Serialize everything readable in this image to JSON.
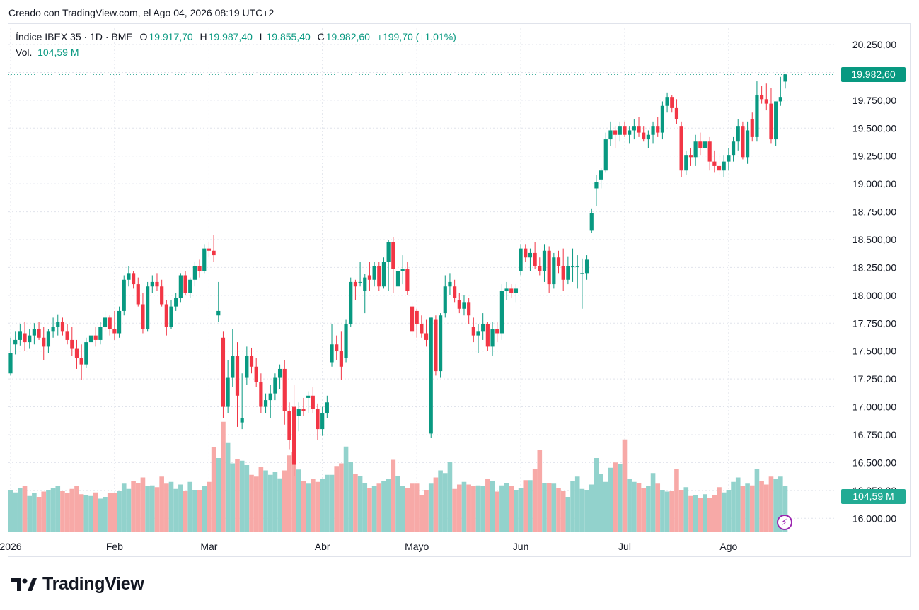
{
  "created_text": "Creado con TradingView.com, el Ago 04, 2026 08:19 UTC+2",
  "legend": {
    "symbol": "Índice IBEX 35 · 1D · BME",
    "o_label": "O",
    "o_value": "19.917,70",
    "h_label": "H",
    "h_value": "19.987,40",
    "l_label": "L",
    "l_value": "19.855,40",
    "c_label": "C",
    "c_value": "19.982,60",
    "change": "+199,70 (+1,01%)",
    "vol_label": "Vol.",
    "vol_value": "104,59 M"
  },
  "last_price_label": "19.982,60",
  "last_volume_label": "104,59 M",
  "brand": "TradingView",
  "colors": {
    "up": "#089981",
    "down": "#f23645",
    "up_volume": "#92d2cc",
    "down_volume": "#f7a9a7",
    "grid": "#e0e3eb"
  },
  "chart_data": {
    "type": "candlestick",
    "y_ticks": [
      "20.250,00",
      "20.000,00",
      "19.750,00",
      "19.500,00",
      "19.250,00",
      "19.000,00",
      "18.750,00",
      "18.500,00",
      "18.250,00",
      "18.000,00",
      "17.750,00",
      "17.500,00",
      "17.250,00",
      "17.000,00",
      "16.750,00",
      "16.500,00",
      "16.250,00",
      "16.000,00"
    ],
    "y_tick_values": [
      20250,
      20000,
      19750,
      19500,
      19250,
      19000,
      18750,
      18500,
      18250,
      18000,
      17750,
      17500,
      17250,
      17000,
      16750,
      16500,
      16250,
      16000
    ],
    "x_labels": [
      "2026",
      "Feb",
      "Mar",
      "Abr",
      "Mayo",
      "Jun",
      "Jul",
      "Ago"
    ],
    "x_label_index": [
      0,
      22,
      42,
      66,
      86,
      108,
      130,
      152
    ],
    "last_price": 19982.6,
    "ohlc": [
      [
        17300,
        17620,
        17280,
        17480,
        48
      ],
      [
        17560,
        17680,
        17470,
        17600,
        45
      ],
      [
        17600,
        17740,
        17550,
        17680,
        50
      ],
      [
        17660,
        17760,
        17500,
        17580,
        52
      ],
      [
        17580,
        17700,
        17520,
        17640,
        41
      ],
      [
        17640,
        17750,
        17560,
        17700,
        44
      ],
      [
        17700,
        17760,
        17600,
        17620,
        40
      ],
      [
        17620,
        17720,
        17420,
        17540,
        46
      ],
      [
        17540,
        17700,
        17480,
        17680,
        48
      ],
      [
        17680,
        17800,
        17620,
        17720,
        50
      ],
      [
        17720,
        17830,
        17640,
        17760,
        52
      ],
      [
        17760,
        17800,
        17640,
        17680,
        47
      ],
      [
        17680,
        17740,
        17560,
        17600,
        44
      ],
      [
        17600,
        17720,
        17460,
        17520,
        49
      ],
      [
        17520,
        17600,
        17340,
        17440,
        52
      ],
      [
        17440,
        17560,
        17240,
        17380,
        43
      ],
      [
        17380,
        17620,
        17350,
        17580,
        42
      ],
      [
        17580,
        17680,
        17520,
        17640,
        41
      ],
      [
        17640,
        17720,
        17540,
        17600,
        45
      ],
      [
        17600,
        17760,
        17560,
        17720,
        38
      ],
      [
        17720,
        17860,
        17680,
        17800,
        40
      ],
      [
        17800,
        17820,
        17640,
        17700,
        44
      ],
      [
        17700,
        17860,
        17600,
        17660,
        44
      ],
      [
        17660,
        17900,
        17620,
        17860,
        47
      ],
      [
        17860,
        18180,
        17820,
        18140,
        55
      ],
      [
        18140,
        18260,
        18080,
        18200,
        49
      ],
      [
        18200,
        18220,
        18060,
        18100,
        58
      ],
      [
        18100,
        18160,
        17900,
        17920,
        56
      ],
      [
        17920,
        18020,
        17660,
        17700,
        62
      ],
      [
        17700,
        18120,
        17680,
        18080,
        52
      ],
      [
        18080,
        18180,
        18020,
        18120,
        53
      ],
      [
        18120,
        18200,
        18040,
        18080,
        51
      ],
      [
        18080,
        18140,
        17900,
        17920,
        63
      ],
      [
        17920,
        17960,
        17640,
        17720,
        55
      ],
      [
        17720,
        17960,
        17700,
        17900,
        57
      ],
      [
        17900,
        18020,
        17860,
        17980,
        49
      ],
      [
        17980,
        18200,
        17940,
        18180,
        54
      ],
      [
        18180,
        18220,
        18000,
        18020,
        47
      ],
      [
        18020,
        18160,
        17980,
        18140,
        57
      ],
      [
        18140,
        18300,
        18080,
        18260,
        48
      ],
      [
        18260,
        18320,
        18160,
        18220,
        48
      ],
      [
        18220,
        18460,
        18200,
        18420,
        52
      ],
      [
        18420,
        18480,
        18340,
        18400,
        57
      ],
      [
        18400,
        18540,
        18300,
        18360,
        96
      ],
      [
        17820,
        18120,
        17760,
        17860,
        84
      ],
      [
        17620,
        17680,
        16900,
        17000,
        125
      ],
      [
        17000,
        17420,
        16940,
        17260,
        101
      ],
      [
        17260,
        17700,
        17180,
        17460,
        78
      ],
      [
        17460,
        17580,
        16820,
        17100,
        83
      ],
      [
        16860,
        17300,
        16800,
        16900,
        81
      ],
      [
        17260,
        17540,
        17200,
        17460,
        76
      ],
      [
        17460,
        17530,
        17300,
        17360,
        65
      ],
      [
        17360,
        17440,
        17180,
        17220,
        63
      ],
      [
        17220,
        17300,
        16940,
        17000,
        74
      ],
      [
        17000,
        17120,
        16940,
        17060,
        70
      ],
      [
        17060,
        17200,
        16900,
        17120,
        65
      ],
      [
        17120,
        17300,
        17060,
        17260,
        68
      ],
      [
        17260,
        17380,
        17160,
        17340,
        61
      ],
      [
        17340,
        17420,
        16840,
        16960,
        70
      ],
      [
        16960,
        17040,
        16620,
        16700,
        87
      ],
      [
        17000,
        17200,
        16380,
        16480,
        91
      ],
      [
        16920,
        17040,
        16780,
        16980,
        71
      ],
      [
        16980,
        17080,
        16920,
        16960,
        58
      ],
      [
        17080,
        17140,
        16940,
        17100,
        55
      ],
      [
        17100,
        17180,
        16940,
        16980,
        60
      ],
      [
        16980,
        17030,
        16700,
        16800,
        57
      ],
      [
        16800,
        17000,
        16740,
        16940,
        60
      ],
      [
        16940,
        17100,
        16900,
        17040,
        65
      ],
      [
        17400,
        17740,
        17360,
        17560,
        65
      ],
      [
        17560,
        17640,
        17420,
        17500,
        75
      ],
      [
        17500,
        17680,
        17240,
        17360,
        78
      ],
      [
        17440,
        17780,
        17400,
        17740,
        97
      ],
      [
        17740,
        18160,
        17720,
        18120,
        80
      ],
      [
        18120,
        18140,
        17960,
        18080,
        66
      ],
      [
        18120,
        18300,
        18080,
        18120,
        64
      ],
      [
        18040,
        18190,
        17840,
        18160,
        56
      ],
      [
        18180,
        18300,
        18040,
        18140,
        50
      ],
      [
        18140,
        18300,
        18080,
        18260,
        52
      ],
      [
        18260,
        18300,
        18040,
        18080,
        55
      ],
      [
        18080,
        18340,
        18060,
        18300,
        58
      ],
      [
        18300,
        18500,
        18040,
        18480,
        60
      ],
      [
        18480,
        18520,
        18020,
        18240,
        82
      ],
      [
        18080,
        18360,
        17920,
        18220,
        64
      ],
      [
        18220,
        18360,
        18100,
        18240,
        52
      ],
      [
        18240,
        18300,
        18000,
        18040,
        50
      ],
      [
        17900,
        17940,
        17640,
        17680,
        55
      ],
      [
        17860,
        17880,
        17620,
        17740,
        55
      ],
      [
        17740,
        17820,
        17620,
        17660,
        42
      ],
      [
        17660,
        17780,
        17540,
        17600,
        48
      ],
      [
        16760,
        17800,
        16720,
        17800,
        55
      ],
      [
        17780,
        17820,
        17280,
        17320,
        62
      ],
      [
        17320,
        17840,
        17260,
        17820,
        70
      ],
      [
        17840,
        18180,
        17800,
        18080,
        67
      ],
      [
        18080,
        18200,
        18000,
        18120,
        80
      ],
      [
        18080,
        18140,
        17940,
        17980,
        49
      ],
      [
        17960,
        18020,
        17840,
        17880,
        54
      ],
      [
        17880,
        18000,
        17820,
        17940,
        57
      ],
      [
        17940,
        17980,
        17740,
        17820,
        54
      ],
      [
        17720,
        17800,
        17580,
        17640,
        52
      ],
      [
        17640,
        17740,
        17480,
        17680,
        53
      ],
      [
        17680,
        17840,
        17600,
        17740,
        52
      ],
      [
        17740,
        17760,
        17500,
        17540,
        60
      ],
      [
        17540,
        17760,
        17460,
        17700,
        58
      ],
      [
        17700,
        17760,
        17580,
        17660,
        46
      ],
      [
        17660,
        18100,
        17600,
        18040,
        53
      ],
      [
        18040,
        18120,
        17960,
        18060,
        56
      ],
      [
        18060,
        18100,
        17980,
        18020,
        52
      ],
      [
        18020,
        18100,
        17940,
        18060,
        48
      ],
      [
        18220,
        18460,
        18180,
        18420,
        50
      ],
      [
        18420,
        18460,
        18300,
        18340,
        59
      ],
      [
        18340,
        18420,
        18220,
        18380,
        59
      ],
      [
        18380,
        18480,
        18240,
        18260,
        72
      ],
      [
        18260,
        18340,
        18180,
        18220,
        93
      ],
      [
        18220,
        18460,
        18120,
        18400,
        56
      ],
      [
        18400,
        18440,
        18020,
        18100,
        56
      ],
      [
        18100,
        18380,
        18060,
        18340,
        55
      ],
      [
        18340,
        18400,
        18200,
        18260,
        50
      ],
      [
        18260,
        18420,
        18040,
        18140,
        47
      ],
      [
        18140,
        18350,
        18100,
        18260,
        40
      ],
      [
        18260,
        18420,
        18120,
        18260,
        58
      ],
      [
        18260,
        18360,
        18060,
        18260,
        63
      ],
      [
        18200,
        18330,
        17880,
        18200,
        49
      ],
      [
        18200,
        18360,
        18140,
        18320,
        48
      ],
      [
        18580,
        18780,
        18560,
        18740,
        54
      ],
      [
        18960,
        19080,
        18800,
        19020,
        84
      ],
      [
        19040,
        19140,
        18960,
        19120,
        66
      ],
      [
        19120,
        19460,
        19100,
        19400,
        57
      ],
      [
        19400,
        19560,
        19340,
        19480,
        73
      ],
      [
        19480,
        19520,
        19320,
        19440,
        79
      ],
      [
        19440,
        19560,
        19380,
        19520,
        77
      ],
      [
        19520,
        19560,
        19420,
        19440,
        105
      ],
      [
        19440,
        19520,
        19360,
        19480,
        60
      ],
      [
        19480,
        19580,
        19400,
        19520,
        57
      ],
      [
        19520,
        19600,
        19420,
        19460,
        56
      ],
      [
        19460,
        19520,
        19380,
        19400,
        50
      ],
      [
        19400,
        19480,
        19320,
        19440,
        52
      ],
      [
        19440,
        19560,
        19360,
        19520,
        67
      ],
      [
        19520,
        19600,
        19420,
        19460,
        55
      ],
      [
        19460,
        19740,
        19400,
        19700,
        48
      ],
      [
        19700,
        19820,
        19640,
        19780,
        46
      ],
      [
        19780,
        19800,
        19640,
        19680,
        47
      ],
      [
        19680,
        19760,
        19540,
        19580,
        72
      ],
      [
        19520,
        19560,
        19060,
        19120,
        48
      ],
      [
        19120,
        19300,
        19080,
        19260,
        51
      ],
      [
        19260,
        19320,
        19160,
        19240,
        41
      ],
      [
        19240,
        19440,
        19160,
        19380,
        42
      ],
      [
        19380,
        19460,
        19260,
        19320,
        39
      ],
      [
        19320,
        19440,
        19260,
        19380,
        43
      ],
      [
        19380,
        19420,
        19120,
        19200,
        39
      ],
      [
        19200,
        19300,
        19100,
        19160,
        42
      ],
      [
        19160,
        19280,
        19080,
        19120,
        51
      ],
      [
        19120,
        19260,
        19060,
        19200,
        45
      ],
      [
        19200,
        19320,
        19120,
        19260,
        48
      ],
      [
        19260,
        19420,
        19200,
        19380,
        57
      ],
      [
        19380,
        19580,
        19300,
        19520,
        62
      ],
      [
        19520,
        19560,
        19220,
        19240,
        52
      ],
      [
        19240,
        19560,
        19180,
        19480,
        55
      ],
      [
        19580,
        19640,
        19380,
        19420,
        53
      ],
      [
        19420,
        19920,
        19380,
        19800,
        72
      ],
      [
        19800,
        19880,
        19720,
        19760,
        58
      ],
      [
        19760,
        19900,
        19660,
        19720,
        54
      ],
      [
        19720,
        19860,
        19360,
        19400,
        63
      ],
      [
        19400,
        19740,
        19340,
        19740,
        60
      ],
      [
        19740,
        19960,
        19700,
        19780,
        63
      ],
      [
        19917.7,
        19987.4,
        19855.4,
        19982.6,
        52
      ]
    ]
  }
}
